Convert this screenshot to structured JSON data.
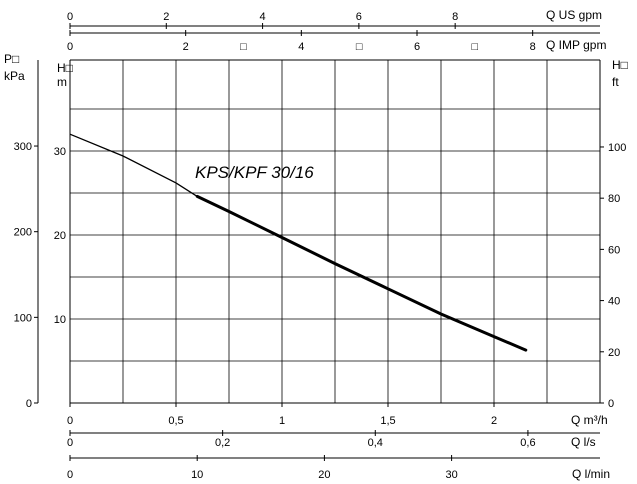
{
  "chart_data": {
    "type": "line",
    "title": "",
    "xlabel": "Q m³/h",
    "ylabel": "H m",
    "xlim": [
      0,
      2.6
    ],
    "ylim": [
      0,
      39
    ],
    "grid": true,
    "x_ticks": [
      "0",
      "0,5",
      "1",
      "1,5",
      "2"
    ],
    "x_tick_values": [
      0,
      0.5,
      1,
      1.5,
      2
    ],
    "y_ticks": [
      "10",
      "20",
      "30"
    ],
    "y_tick_values": [
      10,
      20,
      30
    ],
    "series": [
      {
        "name": "KPS/KPF 30/16",
        "x": [
          0,
          0.25,
          0.5,
          0.6,
          0.75,
          1.0,
          1.25,
          1.5,
          1.75,
          2.0,
          2.15
        ],
        "y": [
          32.0,
          29.4,
          26.2,
          24.6,
          22.8,
          19.7,
          16.6,
          13.6,
          10.6,
          7.9,
          6.3
        ],
        "thin_until_x": 0.6
      }
    ],
    "axes": {
      "top_us_gpm": {
        "label": "Q US gpm",
        "ticks": [
          "0",
          "2",
          "4",
          "6",
          "8"
        ],
        "values": [
          0,
          2,
          4,
          6,
          8
        ],
        "factor": 0.2271
      },
      "top_imp_gpm": {
        "label": "Q IMP gpm",
        "ticks": [
          "0",
          "2",
          "4",
          "6",
          "8"
        ],
        "values": [
          0,
          2,
          4,
          6,
          8
        ],
        "factor": 0.2728,
        "marker_glyph": "□",
        "marker_values": [
          3,
          5,
          7
        ]
      },
      "left_kpa": {
        "label_top": "P□",
        "label_unit": "kPa",
        "ticks": [
          "0",
          "100",
          "200",
          "300"
        ],
        "values": [
          0,
          100,
          200,
          300
        ],
        "factor": 0.10197
      },
      "left_m_label_top": "H□",
      "left_m_label_unit": "m",
      "right_ft": {
        "label_top": "H□",
        "label_unit": "ft",
        "ticks": [
          "0",
          "20",
          "40",
          "60",
          "80",
          "100"
        ],
        "values": [
          0,
          20,
          40,
          60,
          80,
          100
        ],
        "factor": 0.3048
      },
      "bottom_ls": {
        "label": "Q l/s",
        "ticks": [
          "0",
          "0,2",
          "0,4",
          "0,6"
        ],
        "values": [
          0,
          0.2,
          0.4,
          0.6
        ],
        "factor": 3.6
      },
      "bottom_lmin": {
        "label": "Q l/min",
        "ticks": [
          "0",
          "10",
          "20",
          "30"
        ],
        "values": [
          0,
          10,
          20,
          30
        ],
        "factor": 0.06
      }
    },
    "curve_label": "KPS/KPF 30/16"
  }
}
